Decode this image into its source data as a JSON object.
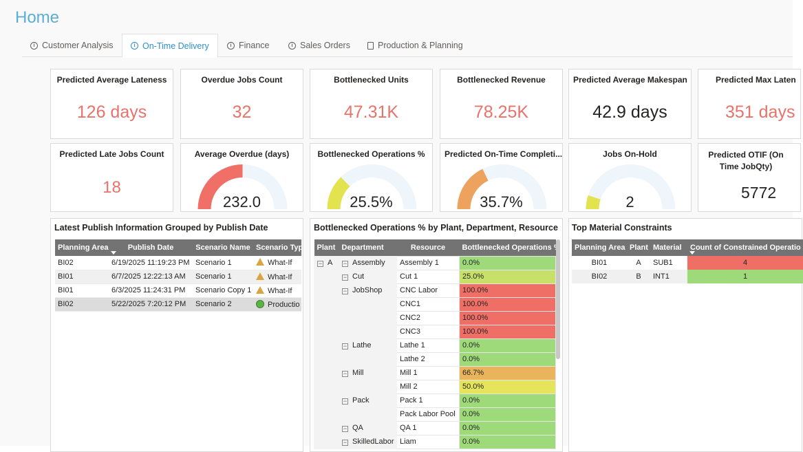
{
  "page": {
    "title": "Home"
  },
  "tabs": [
    {
      "label": "Customer Analysis",
      "icon": "info-icon",
      "active": false
    },
    {
      "label": "On-Time Delivery",
      "icon": "info-icon",
      "active": true
    },
    {
      "label": "Finance",
      "icon": "info-icon",
      "active": false
    },
    {
      "label": "Sales Orders",
      "icon": "info-icon",
      "active": false
    },
    {
      "label": "Production & Planning",
      "icon": "document-icon",
      "active": false
    }
  ],
  "kpi_row1": [
    {
      "title": "Predicted Average Lateness",
      "value": "126 days",
      "color": "#e8736b"
    },
    {
      "title": "Overdue Jobs Count",
      "value": "32",
      "color": "#e8736b"
    },
    {
      "title": "Bottlenecked Units",
      "value": "47.31K",
      "color": "#e8736b"
    },
    {
      "title": "Bottlenecked Revenue",
      "value": "78.25K",
      "color": "#e8736b"
    },
    {
      "title": "Predicted Average Makespan",
      "value": "42.9 days",
      "color": "#252423"
    },
    {
      "title": "Predicted Max Laten",
      "value": "351 days",
      "color": "#e8736b"
    }
  ],
  "kpi_row2": {
    "late_jobs": {
      "title": "Predicted Late Jobs Count",
      "value": "18"
    },
    "gauges": [
      {
        "title": "Average Overdue (days)",
        "value": "232.0",
        "fraction": 0.5,
        "color": "#f07068"
      },
      {
        "title": "Bottlenecked Operations %",
        "value": "25.5%",
        "fraction": 0.255,
        "color": "#e3e350"
      },
      {
        "title": "Predicted On-Time Completi...",
        "value": "35.7%",
        "fraction": 0.357,
        "color": "#eda35e"
      },
      {
        "title": "Jobs On-Hold",
        "value": "2",
        "fraction": 0.1,
        "color": "#e3e350"
      }
    ],
    "otif": {
      "title": "Predicted OTIF (On Time JobQty)",
      "value": "5772"
    }
  },
  "publish_panel": {
    "title": "Latest Publish Information Grouped by Publish Date",
    "columns": [
      "Planning Area",
      "Publish Date",
      "Scenario Name",
      "Scenario Typ"
    ],
    "rows": [
      {
        "area": "BI02",
        "date": "6/19/2025 11:19:23 PM",
        "name": "Scenario 1",
        "type": "What-If",
        "icon": "warning-triangle-icon"
      },
      {
        "area": "BI01",
        "date": "6/7/2025 12:22:13 AM",
        "name": "Scenario 1",
        "type": "What-If",
        "icon": "warning-triangle-icon"
      },
      {
        "area": "BI01",
        "date": "6/3/2025 11:24:31 PM",
        "name": "Scenario Copy 1",
        "type": "What-If",
        "icon": "warning-triangle-icon"
      },
      {
        "area": "BI02",
        "date": "5/22/2025 7:20:12 PM",
        "name": "Scenario 2",
        "type": "Productio",
        "icon": "green-circle-icon"
      }
    ]
  },
  "bottleneck_panel": {
    "title": "Bottlenecked Operations % by Plant, Department, Resource",
    "columns": [
      "Plant",
      "Department",
      "Resource",
      "Bottlenecked Operations %"
    ],
    "plant": "A",
    "departments": [
      {
        "name": "Assembly",
        "resources": [
          {
            "name": "Assembly 1",
            "value": "0.0%",
            "color": "#9ed97a"
          }
        ]
      },
      {
        "name": "Cut",
        "resources": [
          {
            "name": "Cut 1",
            "value": "25.0%",
            "color": "#c7e06a"
          }
        ]
      },
      {
        "name": "JobShop",
        "resources": [
          {
            "name": "CNC Labor",
            "value": "100.0%",
            "color": "#ef6f66"
          },
          {
            "name": "CNC1",
            "value": "100.0%",
            "color": "#ef6f66"
          },
          {
            "name": "CNC2",
            "value": "100.0%",
            "color": "#ef6f66"
          },
          {
            "name": "CNC3",
            "value": "100.0%",
            "color": "#ef6f66"
          }
        ]
      },
      {
        "name": "Lathe",
        "resources": [
          {
            "name": "Lathe 1",
            "value": "0.0%",
            "color": "#9ed97a"
          },
          {
            "name": "Lathe 2",
            "value": "0.0%",
            "color": "#9ed97a"
          }
        ]
      },
      {
        "name": "Mill",
        "resources": [
          {
            "name": "Mill 1",
            "value": "66.7%",
            "color": "#eab45c"
          },
          {
            "name": "Mill 2",
            "value": "50.0%",
            "color": "#e6e45a"
          }
        ]
      },
      {
        "name": "Pack",
        "resources": [
          {
            "name": "Pack 1",
            "value": "0.0%",
            "color": "#9ed97a"
          },
          {
            "name": "Pack Labor Pool",
            "value": "0.0%",
            "color": "#9ed97a"
          }
        ]
      },
      {
        "name": "QA",
        "resources": [
          {
            "name": "QA 1",
            "value": "0.0%",
            "color": "#9ed97a"
          }
        ]
      },
      {
        "name": "SkilledLabor",
        "resources": [
          {
            "name": "Liam",
            "value": "0.0%",
            "color": "#9ed97a"
          }
        ]
      }
    ]
  },
  "material_panel": {
    "title": "Top Material Constraints",
    "columns": [
      "Planning Area",
      "Plant",
      "Material",
      "Count of Constrained Operatio"
    ],
    "rows": [
      {
        "area": "BI01",
        "plant": "A",
        "material": "SUB1",
        "count": "4",
        "color": "#ef6f66"
      },
      {
        "area": "BI02",
        "plant": "B",
        "material": "INT1",
        "count": "1",
        "color": "#9ed97a"
      }
    ]
  }
}
